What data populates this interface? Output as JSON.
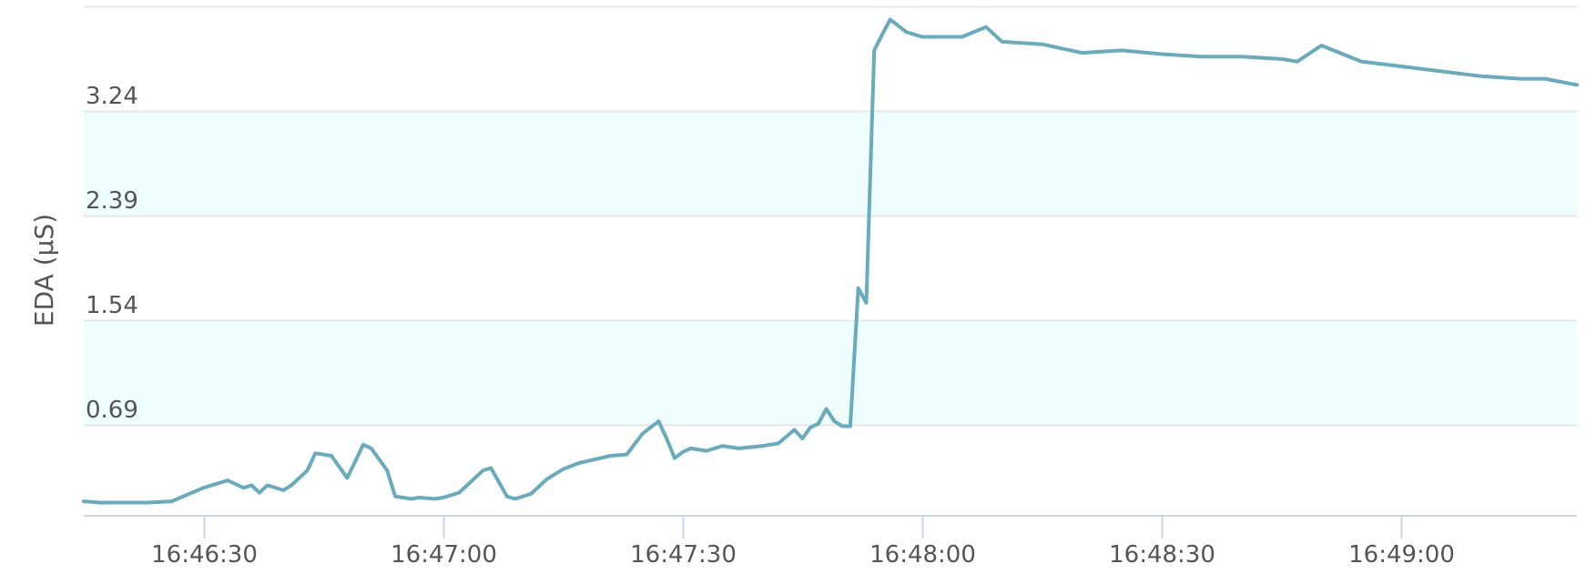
{
  "chart_data": {
    "type": "line",
    "title": "",
    "xlabel": "",
    "ylabel": "EDA (µS)",
    "y_ticks": [
      "0.69",
      "1.54",
      "2.39",
      "3.24"
    ],
    "x_ticks": [
      "16:46:30",
      "16:47:00",
      "16:47:30",
      "16:48:00",
      "16:48:30",
      "16:49:00"
    ],
    "xlim": [
      "16:46:15",
      "16:49:22"
    ],
    "ylim": [
      -0.04,
      4.08
    ],
    "grid": true,
    "band_fill": "#eefefe",
    "colors": {
      "line": "#68abbd",
      "grid": "#e6e6e6",
      "axis": "#ccd6eb",
      "text": "#555555"
    },
    "series": [
      {
        "x": [
          "16:46:15",
          "16:46:17",
          "16:46:20",
          "16:46:23",
          "16:46:26",
          "16:46:30",
          "16:46:33",
          "16:46:35",
          "16:46:36",
          "16:46:37",
          "16:46:38",
          "16:46:40",
          "16:46:41",
          "16:46:43",
          "16:46:44",
          "16:46:46",
          "16:46:48",
          "16:46:50",
          "16:46:51",
          "16:46:53",
          "16:46:54",
          "16:46:56",
          "16:46:57",
          "16:46:59",
          "16:47:00",
          "16:47:02",
          "16:47:03",
          "16:47:05",
          "16:47:06",
          "16:47:08",
          "16:47:09",
          "16:47:11",
          "16:47:13",
          "16:47:15",
          "16:47:17",
          "16:47:19",
          "16:47:21",
          "16:47:23",
          "16:47:25",
          "16:47:27",
          "16:47:28",
          "16:47:29",
          "16:47:30",
          "16:47:31",
          "16:47:33",
          "16:47:35",
          "16:47:37",
          "16:47:40",
          "16:47:42",
          "16:47:44",
          "16:47:45",
          "16:47:46",
          "16:47:47",
          "16:47:48",
          "16:47:49",
          "16:47:50",
          "16:47:51",
          "16:47:52",
          "16:47:53",
          "16:47:54",
          "16:47:55",
          "16:47:56",
          "16:47:58",
          "16:48:00",
          "16:48:05",
          "16:48:08",
          "16:48:10",
          "16:48:15",
          "16:48:20",
          "16:48:25",
          "16:48:30",
          "16:48:35",
          "16:48:40",
          "16:48:45",
          "16:48:47",
          "16:48:50",
          "16:48:55",
          "16:49:00",
          "16:49:05",
          "16:49:10",
          "16:49:15",
          "16:49:18",
          "16:49:22"
        ],
        "y": [
          0.07,
          0.06,
          0.06,
          0.06,
          0.07,
          0.18,
          0.24,
          0.18,
          0.2,
          0.14,
          0.2,
          0.16,
          0.2,
          0.32,
          0.46,
          0.44,
          0.26,
          0.53,
          0.5,
          0.32,
          0.11,
          0.09,
          0.1,
          0.09,
          0.1,
          0.14,
          0.2,
          0.32,
          0.34,
          0.11,
          0.09,
          0.13,
          0.25,
          0.33,
          0.38,
          0.41,
          0.44,
          0.45,
          0.62,
          0.72,
          0.58,
          0.42,
          0.47,
          0.5,
          0.48,
          0.52,
          0.5,
          0.52,
          0.54,
          0.65,
          0.58,
          0.67,
          0.7,
          0.82,
          0.72,
          0.68,
          0.68,
          1.8,
          1.68,
          3.73,
          3.86,
          3.98,
          3.88,
          3.84,
          3.84,
          3.92,
          3.8,
          3.78,
          3.71,
          3.73,
          3.7,
          3.68,
          3.68,
          3.66,
          3.64,
          3.77,
          3.64,
          3.6,
          3.56,
          3.52,
          3.5,
          3.5,
          3.45
        ]
      }
    ]
  }
}
